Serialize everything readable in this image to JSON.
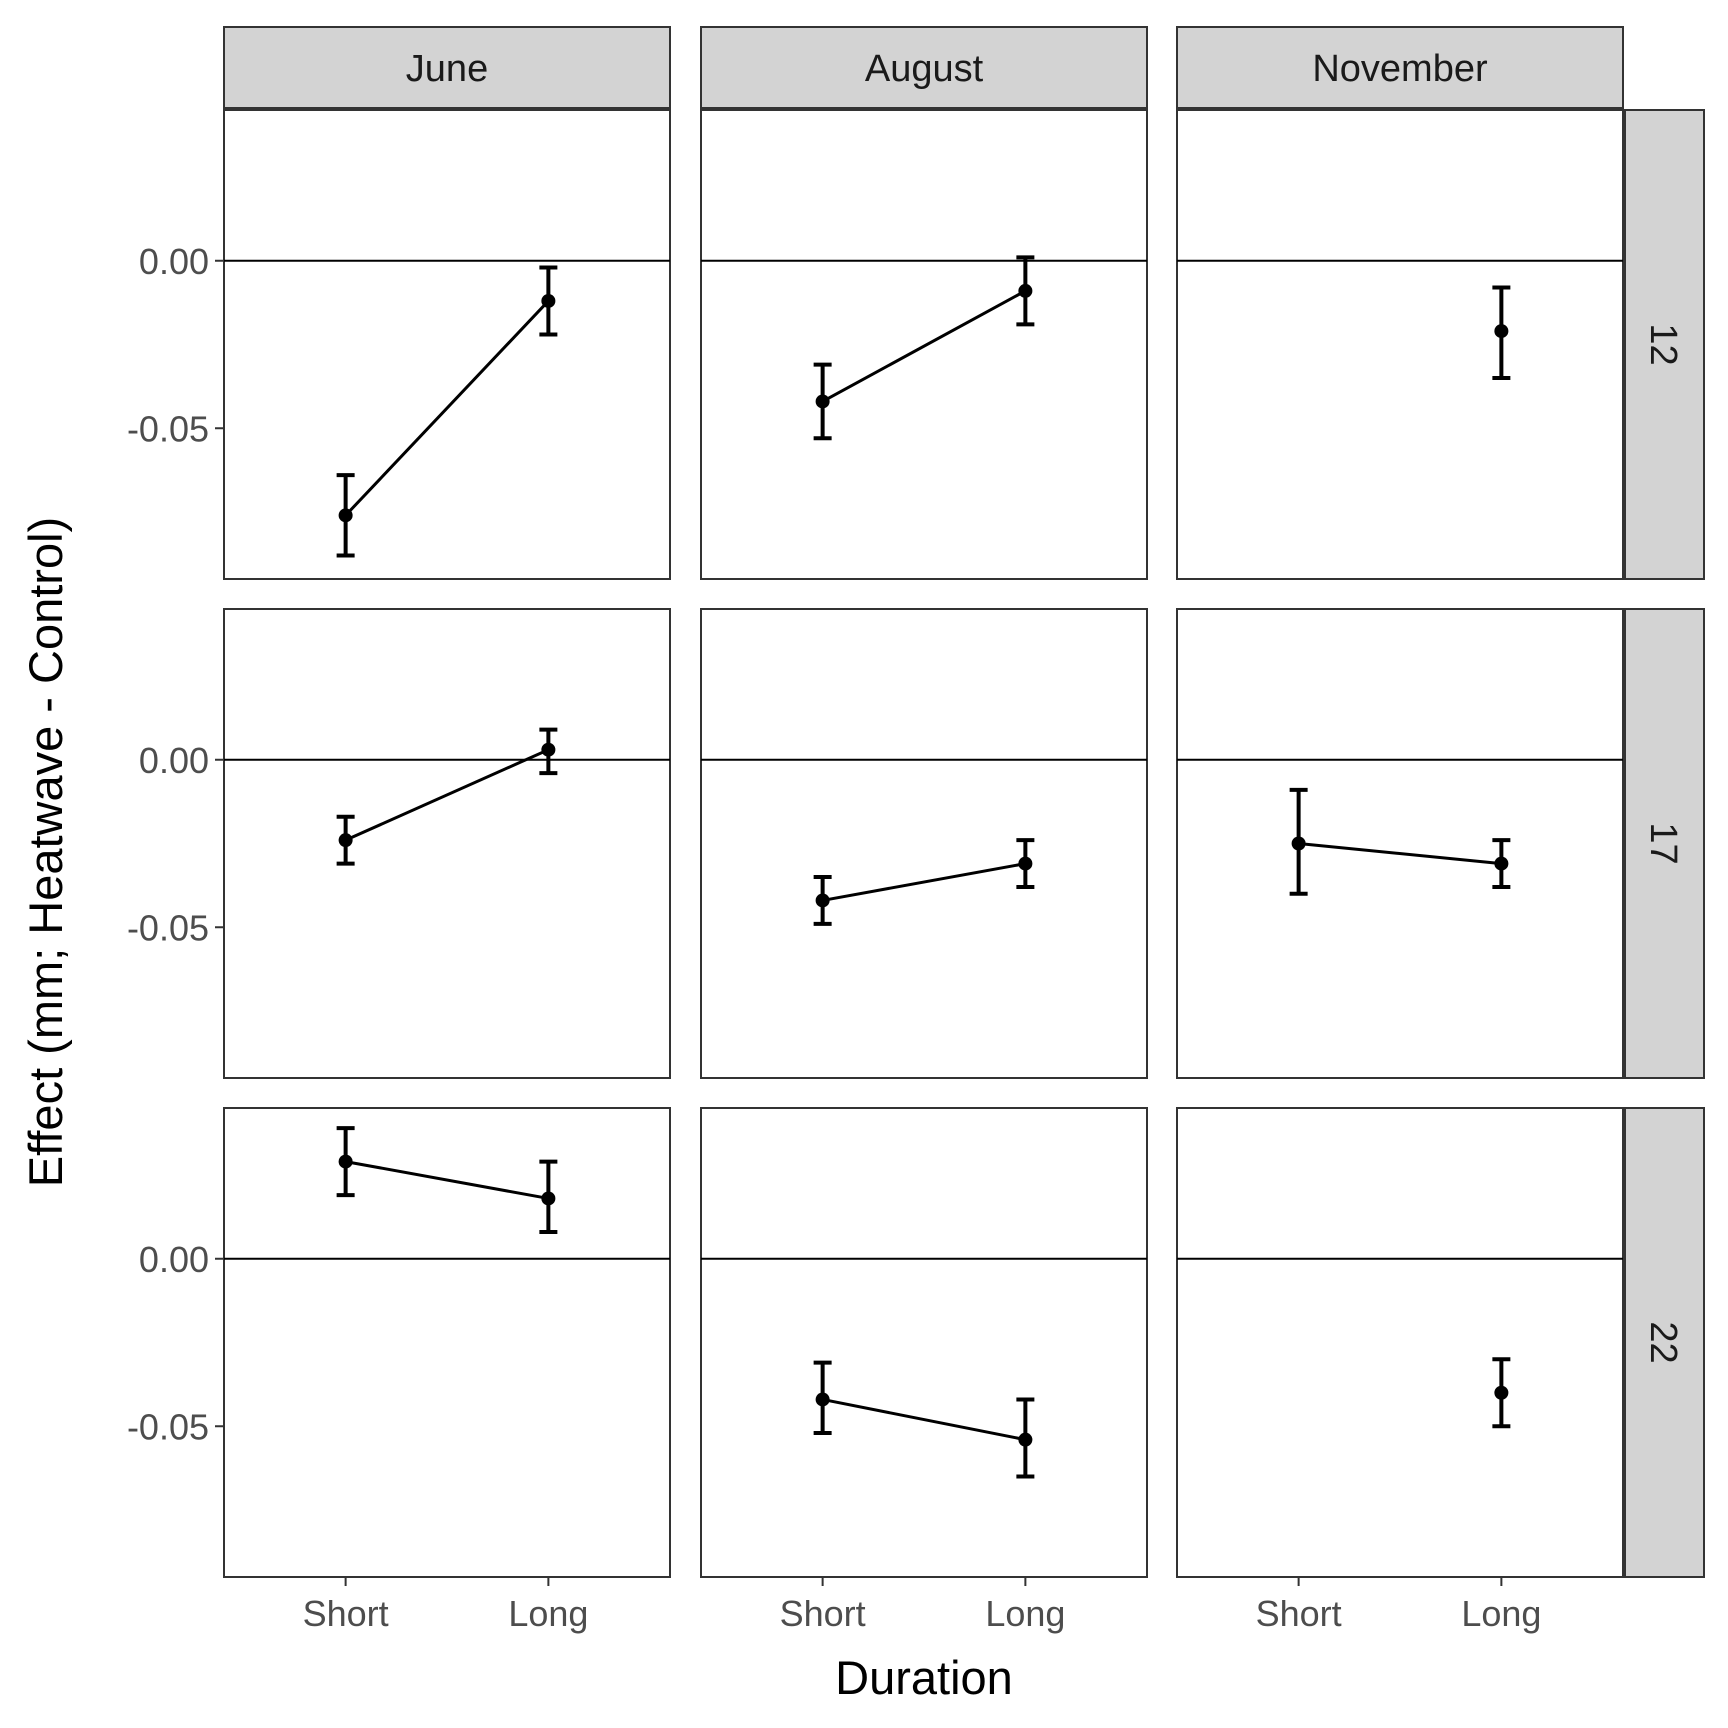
{
  "chart_data": {
    "type": "line",
    "xlabel": "Duration",
    "ylabel": "Effect (mm; Heatwave - Control)",
    "col_facets": [
      "June",
      "August",
      "November"
    ],
    "row_facets": [
      "12",
      "17",
      "22"
    ],
    "x_categories": [
      "Short",
      "Long"
    ],
    "y_ticks": [
      0.0,
      -0.05
    ],
    "y_tick_labels": [
      "0.00",
      "-0.05"
    ],
    "ylim": [
      -0.095,
      0.045
    ],
    "reference_line": 0,
    "panels": [
      {
        "row": "12",
        "col": "June",
        "points": [
          {
            "x": "Short",
            "y": -0.076,
            "lo": -0.088,
            "hi": -0.064
          },
          {
            "x": "Long",
            "y": -0.012,
            "lo": -0.022,
            "hi": -0.002
          }
        ]
      },
      {
        "row": "12",
        "col": "August",
        "points": [
          {
            "x": "Short",
            "y": -0.042,
            "lo": -0.053,
            "hi": -0.031
          },
          {
            "x": "Long",
            "y": -0.009,
            "lo": -0.019,
            "hi": 0.001
          }
        ]
      },
      {
        "row": "12",
        "col": "November",
        "points": [
          {
            "x": "Long",
            "y": -0.021,
            "lo": -0.035,
            "hi": -0.008
          }
        ]
      },
      {
        "row": "17",
        "col": "June",
        "points": [
          {
            "x": "Short",
            "y": -0.024,
            "lo": -0.031,
            "hi": -0.017
          },
          {
            "x": "Long",
            "y": 0.003,
            "lo": -0.004,
            "hi": 0.009
          }
        ]
      },
      {
        "row": "17",
        "col": "August",
        "points": [
          {
            "x": "Short",
            "y": -0.042,
            "lo": -0.049,
            "hi": -0.035
          },
          {
            "x": "Long",
            "y": -0.031,
            "lo": -0.038,
            "hi": -0.024
          }
        ]
      },
      {
        "row": "17",
        "col": "November",
        "points": [
          {
            "x": "Short",
            "y": -0.025,
            "lo": -0.04,
            "hi": -0.009
          },
          {
            "x": "Long",
            "y": -0.031,
            "lo": -0.038,
            "hi": -0.024
          }
        ]
      },
      {
        "row": "22",
        "col": "June",
        "points": [
          {
            "x": "Short",
            "y": 0.029,
            "lo": 0.019,
            "hi": 0.039
          },
          {
            "x": "Long",
            "y": 0.018,
            "lo": 0.008,
            "hi": 0.029
          }
        ]
      },
      {
        "row": "22",
        "col": "August",
        "points": [
          {
            "x": "Short",
            "y": -0.042,
            "lo": -0.052,
            "hi": -0.031
          },
          {
            "x": "Long",
            "y": -0.054,
            "lo": -0.065,
            "hi": -0.042
          }
        ]
      },
      {
        "row": "22",
        "col": "November",
        "points": [
          {
            "x": "Long",
            "y": -0.04,
            "lo": -0.05,
            "hi": -0.03
          }
        ]
      }
    ]
  }
}
